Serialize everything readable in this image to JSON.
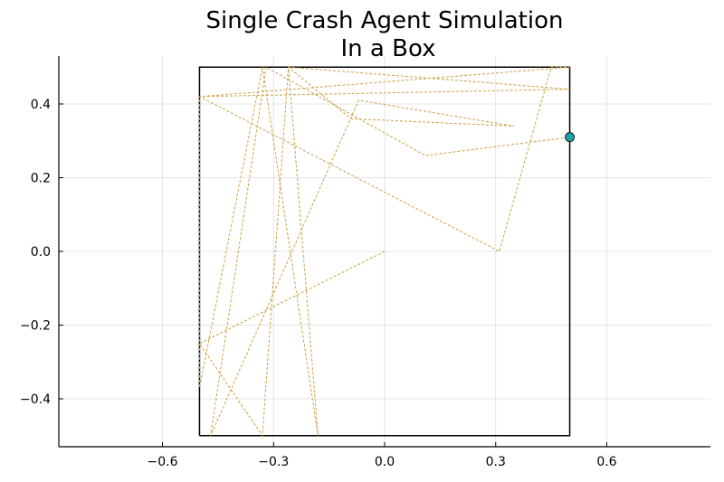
{
  "chart_data": {
    "type": "line",
    "title_lines": [
      "Single Crash Agent Simulation",
      "In a Box"
    ],
    "xlabel": "",
    "ylabel": "",
    "xlim": [
      -0.88,
      0.88
    ],
    "ylim": [
      -0.53,
      0.53
    ],
    "x_ticks": [
      -0.6,
      -0.3,
      0.0,
      0.3,
      0.6
    ],
    "x_tick_labels": [
      "−0.6",
      "−0.3",
      "0.0",
      "0.3",
      "0.6"
    ],
    "y_ticks": [
      -0.4,
      -0.2,
      0.0,
      0.2,
      0.4
    ],
    "y_tick_labels": [
      "−0.4",
      "−0.2",
      "0.0",
      "0.2",
      "0.4"
    ],
    "grid": true,
    "legend": "none",
    "box": {
      "x": [
        -0.5,
        0.5,
        0.5,
        -0.5,
        -0.5
      ],
      "y": [
        -0.5,
        -0.5,
        0.5,
        0.5,
        -0.5
      ]
    },
    "trail": {
      "x": [
        0.0,
        -0.5,
        -0.33,
        -0.26,
        0.5,
        -0.5,
        0.5,
        0.45,
        0.31,
        -0.5,
        -0.5,
        -0.33,
        -0.18,
        -0.26,
        -0.09,
        0.35,
        -0.07,
        -0.47,
        -0.32,
        0.11,
        0.5
      ],
      "y": [
        0.0,
        -0.25,
        -0.5,
        0.5,
        0.44,
        0.42,
        0.5,
        0.5,
        0.0,
        0.42,
        -0.37,
        0.5,
        -0.5,
        0.5,
        0.36,
        0.34,
        0.41,
        -0.5,
        0.5,
        0.26,
        0.31
      ]
    },
    "agent_position": {
      "x": 0.5,
      "y": 0.31
    },
    "colors": {
      "trail": "#c8a144",
      "agent": "#1aa3a8",
      "box": "#000000"
    }
  }
}
